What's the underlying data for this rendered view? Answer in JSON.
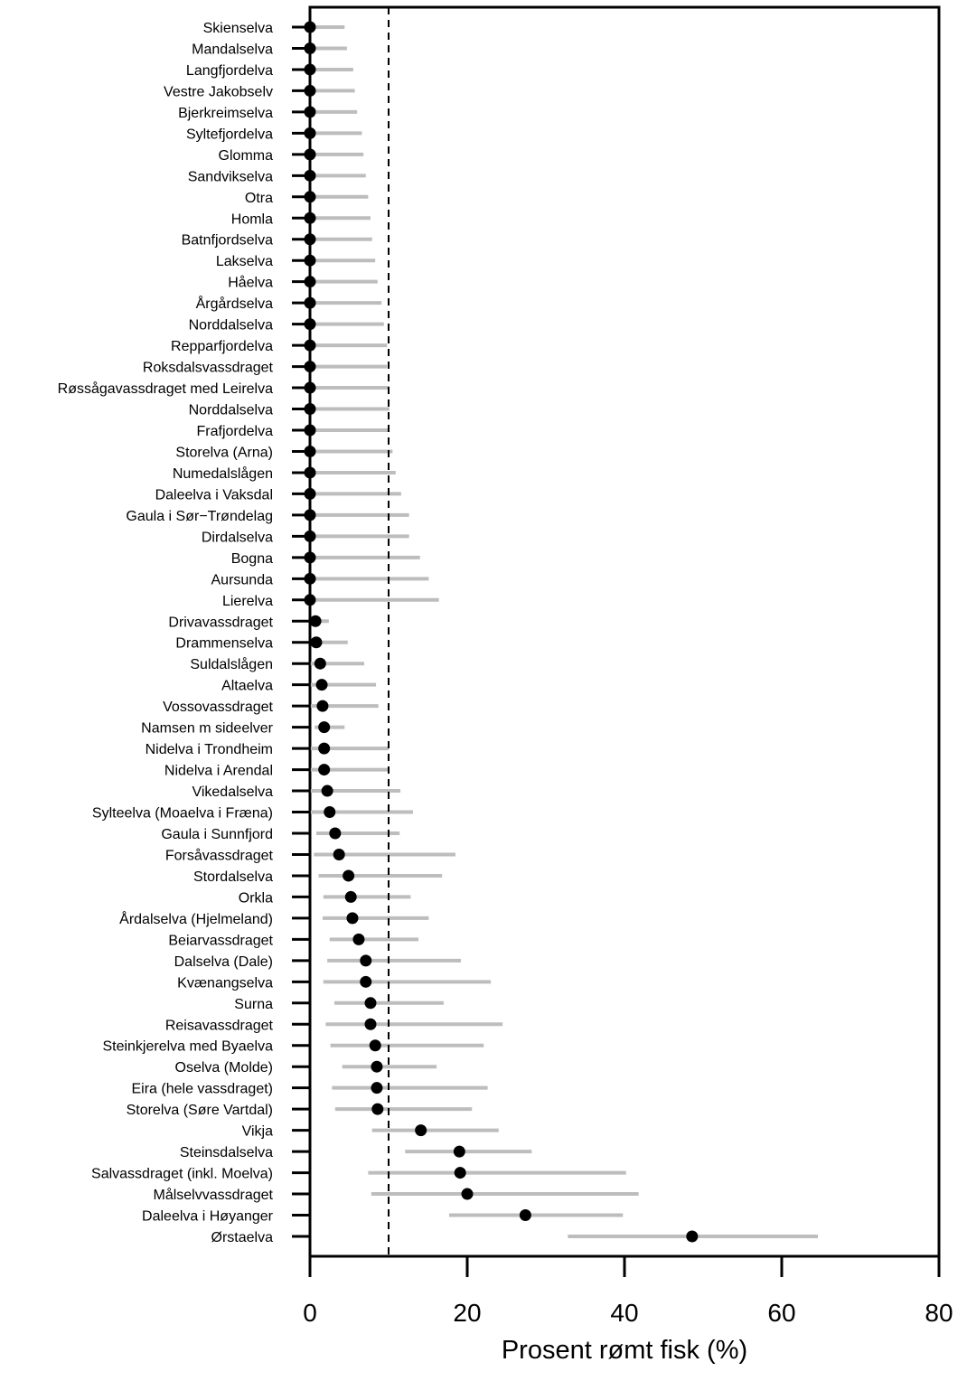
{
  "chart_data": {
    "type": "scatter",
    "title": "",
    "xlabel": "Prosent rømt fisk (%)",
    "ylabel": "",
    "xlim": [
      0,
      80
    ],
    "xticks": [
      0,
      20,
      40,
      60,
      80
    ],
    "reference_line": {
      "x": 10,
      "style": "dashed"
    },
    "grid": false,
    "colors": {
      "point": "#000000",
      "interval": "#bdbdbd",
      "axis": "#000000"
    },
    "rows": [
      {
        "name": "Skienselva",
        "value": 0,
        "lower": 0,
        "upper": 4.4
      },
      {
        "name": "Mandalselva",
        "value": 0,
        "lower": 0,
        "upper": 4.7
      },
      {
        "name": "Langfjordelva",
        "value": 0,
        "lower": 0,
        "upper": 5.5
      },
      {
        "name": "Vestre Jakobselv",
        "value": 0,
        "lower": 0,
        "upper": 5.7
      },
      {
        "name": "Bjerkreimselva",
        "value": 0,
        "lower": 0,
        "upper": 6.0
      },
      {
        "name": "Syltefjordelva",
        "value": 0,
        "lower": 0,
        "upper": 6.6
      },
      {
        "name": "Glomma",
        "value": 0,
        "lower": 0,
        "upper": 6.8
      },
      {
        "name": "Sandvikselva",
        "value": 0,
        "lower": 0,
        "upper": 7.1
      },
      {
        "name": "Otra",
        "value": 0,
        "lower": 0,
        "upper": 7.4
      },
      {
        "name": "Homla",
        "value": 0,
        "lower": 0,
        "upper": 7.7
      },
      {
        "name": "Batnfjordselva",
        "value": 0,
        "lower": 0,
        "upper": 7.9
      },
      {
        "name": "Lakselva",
        "value": 0,
        "lower": 0,
        "upper": 8.3
      },
      {
        "name": "Håelva",
        "value": 0,
        "lower": 0,
        "upper": 8.6
      },
      {
        "name": "Årgårdselva",
        "value": 0,
        "lower": 0,
        "upper": 9.1
      },
      {
        "name": "Norddalselva",
        "value": 0,
        "lower": 0,
        "upper": 9.4
      },
      {
        "name": "Repparfjordelva",
        "value": 0,
        "lower": 0,
        "upper": 9.8
      },
      {
        "name": "Roksdalsvassdraget",
        "value": 0,
        "lower": 0,
        "upper": 9.8
      },
      {
        "name": "Røssågavassdraget med Leirelva",
        "value": 0,
        "lower": 0,
        "upper": 10.1
      },
      {
        "name": "Norddalselva",
        "value": 0,
        "lower": 0,
        "upper": 10.1
      },
      {
        "name": "Frafjordelva",
        "value": 0,
        "lower": 0,
        "upper": 10.1
      },
      {
        "name": "Storelva (Arna)",
        "value": 0,
        "lower": 0,
        "upper": 10.5
      },
      {
        "name": "Numedalslågen",
        "value": 0,
        "lower": 0,
        "upper": 10.9
      },
      {
        "name": "Daleelva i Vaksdal",
        "value": 0,
        "lower": 0,
        "upper": 11.6
      },
      {
        "name": "Gaula i Sør−Trøndelag",
        "value": 0,
        "lower": 0,
        "upper": 12.6
      },
      {
        "name": "Dirdalselva",
        "value": 0,
        "lower": 0,
        "upper": 12.6
      },
      {
        "name": "Bogna",
        "value": 0,
        "lower": 0,
        "upper": 14.0
      },
      {
        "name": "Aursunda",
        "value": 0,
        "lower": 0,
        "upper": 15.1
      },
      {
        "name": "Lierelva",
        "value": 0,
        "lower": 0,
        "upper": 16.4
      },
      {
        "name": "Drivavassdraget",
        "value": 0.7,
        "lower": 0.2,
        "upper": 2.4
      },
      {
        "name": "Drammenselva",
        "value": 0.8,
        "lower": 0.2,
        "upper": 4.8
      },
      {
        "name": "Suldalslågen",
        "value": 1.3,
        "lower": 0.1,
        "upper": 6.9
      },
      {
        "name": "Altaelva",
        "value": 1.5,
        "lower": 0.1,
        "upper": 8.4
      },
      {
        "name": "Vossovassdraget",
        "value": 1.6,
        "lower": 0.1,
        "upper": 8.7
      },
      {
        "name": "Namsen m sideelver",
        "value": 1.8,
        "lower": 0.6,
        "upper": 4.4
      },
      {
        "name": "Nidelva i Trondheim",
        "value": 1.8,
        "lower": 0.1,
        "upper": 10.0
      },
      {
        "name": "Nidelva i Arendal",
        "value": 1.8,
        "lower": 0.1,
        "upper": 10.1
      },
      {
        "name": "Vikedalselva",
        "value": 2.2,
        "lower": 0.1,
        "upper": 11.5
      },
      {
        "name": "Sylteelva (Moaelva i Fræna)",
        "value": 2.5,
        "lower": 0.1,
        "upper": 13.1
      },
      {
        "name": "Gaula i Sunnfjord",
        "value": 3.2,
        "lower": 0.8,
        "upper": 11.4
      },
      {
        "name": "Forsåvassdraget",
        "value": 3.7,
        "lower": 0.5,
        "upper": 18.5
      },
      {
        "name": "Stordalselva",
        "value": 4.9,
        "lower": 1.1,
        "upper": 16.8
      },
      {
        "name": "Orkla",
        "value": 5.2,
        "lower": 1.7,
        "upper": 12.8
      },
      {
        "name": "Årdalselva (Hjelmeland)",
        "value": 5.4,
        "lower": 1.6,
        "upper": 15.1
      },
      {
        "name": "Beiarvassdraget",
        "value": 6.2,
        "lower": 2.5,
        "upper": 13.8
      },
      {
        "name": "Dalselva (Dale)",
        "value": 7.1,
        "lower": 2.2,
        "upper": 19.2
      },
      {
        "name": "Kvænangselva",
        "value": 7.1,
        "lower": 1.7,
        "upper": 23.0
      },
      {
        "name": "Surna",
        "value": 7.7,
        "lower": 3.1,
        "upper": 17.0
      },
      {
        "name": "Reisavassdraget",
        "value": 7.7,
        "lower": 2.0,
        "upper": 24.5
      },
      {
        "name": "Steinkjerelva med Byaelva",
        "value": 8.3,
        "lower": 2.6,
        "upper": 22.1
      },
      {
        "name": "Oselva (Molde)",
        "value": 8.5,
        "lower": 4.1,
        "upper": 16.1
      },
      {
        "name": "Eira (hele vassdraget)",
        "value": 8.5,
        "lower": 2.8,
        "upper": 22.6
      },
      {
        "name": "Storelva (Søre Vartdal)",
        "value": 8.6,
        "lower": 3.2,
        "upper": 20.6
      },
      {
        "name": "Vikja",
        "value": 14.1,
        "lower": 7.9,
        "upper": 24.0
      },
      {
        "name": "Steinsdalselva",
        "value": 19.0,
        "lower": 12.1,
        "upper": 28.2
      },
      {
        "name": "Salvassdraget (inkl. Moelva)",
        "value": 19.1,
        "lower": 7.4,
        "upper": 40.2
      },
      {
        "name": "Målselvvassdraget",
        "value": 20.0,
        "lower": 7.8,
        "upper": 41.8
      },
      {
        "name": "Daleelva i Høyanger",
        "value": 27.4,
        "lower": 17.7,
        "upper": 39.8
      },
      {
        "name": "Ørstaelva",
        "value": 48.6,
        "lower": 32.8,
        "upper": 64.6
      }
    ]
  }
}
